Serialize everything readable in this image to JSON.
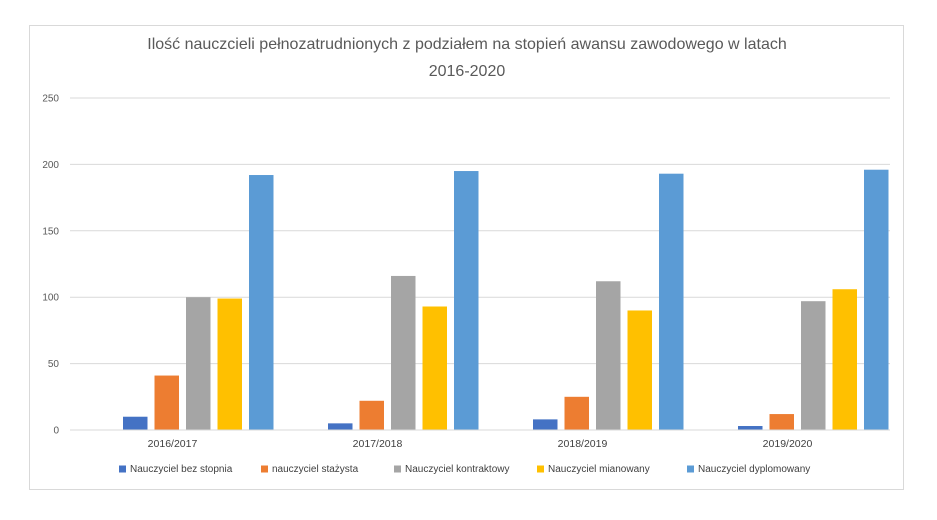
{
  "chart_data": {
    "type": "bar",
    "title": "Ilość nauczcieli pełnozatrudnionych z podziałem na stopień awansu zawodowego w latach 2016-2020",
    "title_lines": [
      "Ilość nauczcieli pełnozatrudnionych z podziałem na stopień awansu zawodowego w latach",
      "2016-2020"
    ],
    "categories": [
      "2016/2017",
      "2017/2018",
      "2018/2019",
      "2019/2020"
    ],
    "ylim": [
      0,
      250
    ],
    "yticks": [
      0,
      50,
      100,
      150,
      200,
      250
    ],
    "grid": true,
    "legend_position": "bottom",
    "series": [
      {
        "name": "Nauczyciel bez stopnia",
        "color": "#4472c4",
        "values": [
          10,
          5,
          8,
          3
        ]
      },
      {
        "name": "nauczyciel stażysta",
        "color": "#ed7d31",
        "values": [
          41,
          22,
          25,
          12
        ]
      },
      {
        "name": "Nauczyciel kontraktowy",
        "color": "#a5a5a5",
        "values": [
          100,
          116,
          112,
          97
        ]
      },
      {
        "name": "Nauczyciel mianowany",
        "color": "#ffc000",
        "values": [
          99,
          93,
          90,
          106
        ]
      },
      {
        "name": "Nauczyciel dyplomowany",
        "color": "#5b9bd5",
        "values": [
          192,
          195,
          193,
          196
        ]
      }
    ]
  }
}
